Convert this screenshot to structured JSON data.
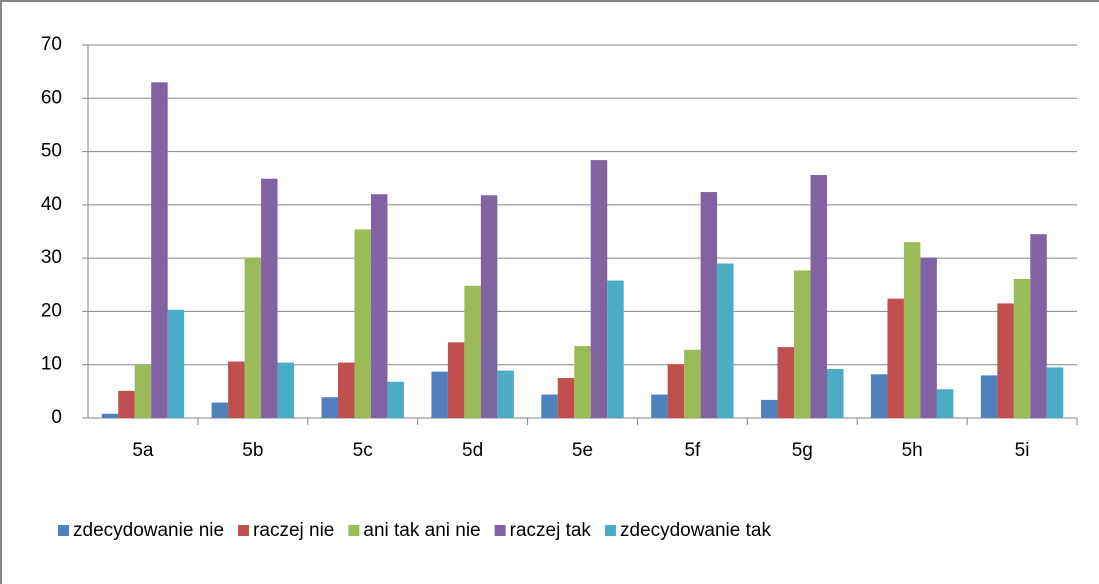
{
  "chart_data": {
    "type": "bar",
    "categories": [
      "5a",
      "5b",
      "5c",
      "5d",
      "5e",
      "5f",
      "5g",
      "5h",
      "5i"
    ],
    "series": [
      {
        "name": "zdecydowanie nie",
        "color": "#4f81bd",
        "values": [
          0.8,
          2.9,
          3.9,
          8.7,
          4.4,
          4.4,
          3.4,
          8.2,
          8.0
        ]
      },
      {
        "name": "raczej nie",
        "color": "#c0504d",
        "values": [
          5.1,
          10.6,
          10.4,
          14.2,
          7.5,
          10.1,
          13.3,
          22.4,
          21.5
        ]
      },
      {
        "name": "ani tak ani nie",
        "color": "#9bbb59",
        "values": [
          10,
          30.1,
          35.4,
          24.8,
          13.5,
          12.8,
          27.7,
          33,
          26.1
        ]
      },
      {
        "name": "raczej tak",
        "color": "#8064a2",
        "values": [
          63,
          44.9,
          42,
          41.8,
          48.4,
          42.4,
          45.6,
          30.1,
          34.5
        ]
      },
      {
        "name": "zdecydowanie tak",
        "color": "#4bacc6",
        "values": [
          20.3,
          10.4,
          6.8,
          8.9,
          25.8,
          29,
          9.2,
          5.4,
          9.5
        ]
      }
    ],
    "ylim": [
      0,
      70
    ],
    "yticks": [
      0,
      10,
      20,
      30,
      40,
      50,
      60,
      70
    ],
    "grid": true,
    "legend": "bottom"
  }
}
